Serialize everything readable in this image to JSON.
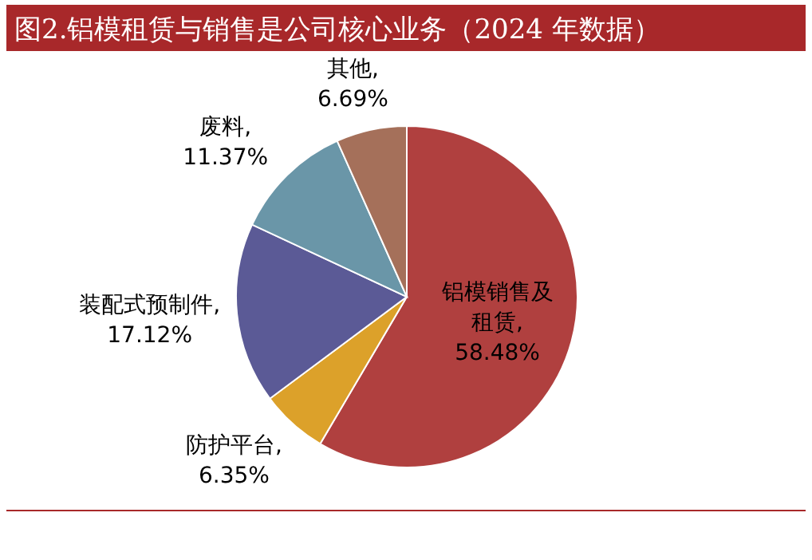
{
  "chart_data": {
    "type": "pie",
    "title": "图2.铝模租赁与销售是公司核心业务（2024 年数据）",
    "categories": [
      "铝模销售及租赁",
      "防护平台",
      "装配式预制件",
      "废料",
      "其他"
    ],
    "values": [
      58.48,
      6.35,
      17.12,
      11.37,
      6.69
    ],
    "value_labels": [
      ", 58.48%",
      ", 6.35%",
      ", 17.12%",
      ", 11.37%",
      ", 6.69%"
    ],
    "colors": [
      "#b0403f",
      "#dca12a",
      "#5b5a96",
      "#6a96a8",
      "#a5705a"
    ]
  }
}
